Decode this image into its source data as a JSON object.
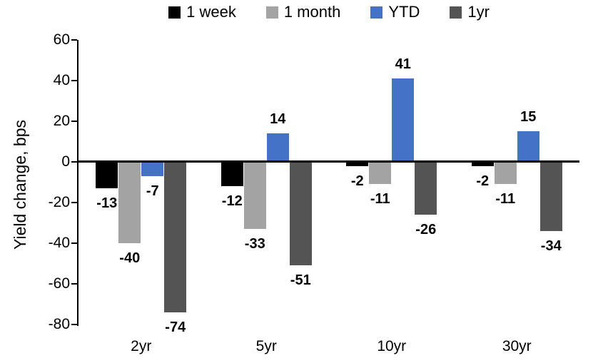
{
  "chart_data": {
    "type": "bar",
    "title": "",
    "xlabel": "",
    "ylabel": "Yield change, bps",
    "categories": [
      "2yr",
      "5yr",
      "10yr",
      "30yr"
    ],
    "series": [
      {
        "name": "1 week",
        "color": "#000000",
        "values": [
          -13,
          -12,
          -2,
          -2
        ]
      },
      {
        "name": "1 month",
        "color": "#A3A3A3",
        "values": [
          -40,
          -33,
          -11,
          -11
        ]
      },
      {
        "name": "YTD",
        "color": "#4472C4",
        "values": [
          -7,
          14,
          41,
          15
        ]
      },
      {
        "name": "1yr",
        "color": "#545454",
        "values": [
          -74,
          -51,
          -26,
          -34
        ]
      }
    ],
    "ylim": [
      -80,
      60
    ],
    "y_ticks": [
      60,
      40,
      20,
      0,
      -20,
      -40,
      -60,
      -80
    ],
    "grid": false,
    "legend_position": "top",
    "data_labels": true,
    "axis_color": "#000000",
    "background": "#FFFFFF"
  }
}
